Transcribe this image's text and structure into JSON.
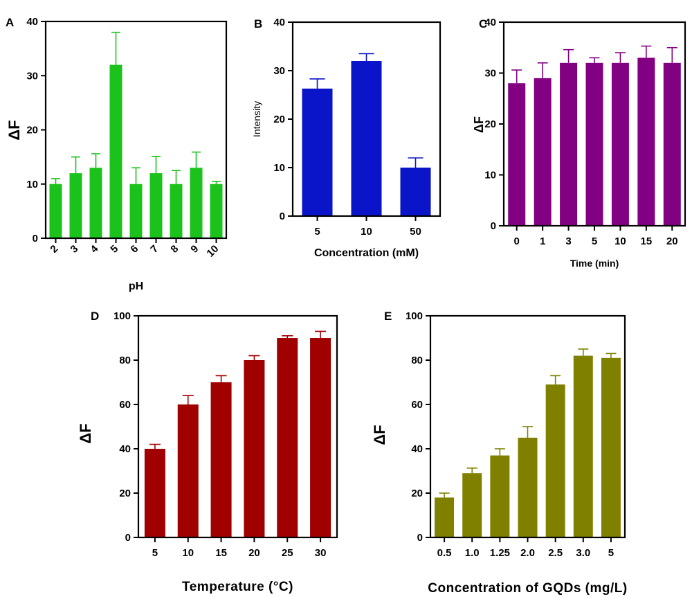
{
  "chart_data": [
    {
      "panel": "A",
      "type": "bar",
      "categories": [
        "2",
        "3",
        "4",
        "5",
        "6",
        "7",
        "8",
        "9",
        "10"
      ],
      "values": [
        10,
        12,
        13,
        32,
        10,
        12,
        10,
        13,
        10
      ],
      "errors": [
        1,
        3,
        2.6,
        6,
        3,
        3.1,
        2.5,
        2.9,
        0.5
      ],
      "ylim": [
        0,
        40
      ],
      "yticks": [
        0,
        10,
        20,
        30,
        40
      ],
      "xlabel": "pH",
      "ylabel": "ΔF",
      "color": "#1cc21c",
      "grid": false
    },
    {
      "panel": "B",
      "type": "bar",
      "categories": [
        "5",
        "10",
        "50"
      ],
      "values": [
        26.3,
        32,
        10
      ],
      "errors": [
        2,
        1.5,
        2
      ],
      "ylim": [
        0,
        40
      ],
      "yticks": [
        0,
        10,
        20,
        30,
        40
      ],
      "xlabel": "Concentration (mM)",
      "ylabel": "Intensity",
      "color": "#0a14c8",
      "grid": false
    },
    {
      "panel": "C",
      "type": "bar",
      "categories": [
        "0",
        "1",
        "3",
        "5",
        "10",
        "15",
        "20"
      ],
      "values": [
        28,
        29,
        32,
        32,
        32,
        33,
        32
      ],
      "errors": [
        2.6,
        3,
        2.6,
        1,
        2,
        2.3,
        3
      ],
      "ylim": [
        0,
        40
      ],
      "yticks": [
        0,
        10,
        20,
        30,
        40
      ],
      "xlabel": "Time (min)",
      "ylabel": "ΔF",
      "color": "#820082",
      "grid": false
    },
    {
      "panel": "D",
      "type": "bar",
      "categories": [
        "5",
        "10",
        "15",
        "20",
        "25",
        "30"
      ],
      "values": [
        40,
        60,
        70,
        80,
        90,
        90
      ],
      "errors": [
        2,
        4,
        3,
        2,
        1,
        3
      ],
      "ylim": [
        0,
        100
      ],
      "yticks": [
        0,
        20,
        40,
        60,
        80,
        100
      ],
      "xlabel": "Temperature (°C)",
      "ylabel": "ΔF",
      "color": "#a00000",
      "grid": false
    },
    {
      "panel": "E",
      "type": "bar",
      "categories": [
        "0.5",
        "1.0",
        "1.25",
        "2.0",
        "2.5",
        "3.0",
        "5"
      ],
      "values": [
        18,
        29,
        37,
        45,
        69,
        82,
        81
      ],
      "errors": [
        2,
        2.3,
        3,
        5,
        4,
        3,
        2
      ],
      "ylim": [
        0,
        100
      ],
      "yticks": [
        0,
        20,
        40,
        60,
        80,
        100
      ],
      "xlabel": "Concentration of GQDs (mg/L)",
      "ylabel": "ΔF",
      "color": "#808000",
      "grid": false
    }
  ]
}
